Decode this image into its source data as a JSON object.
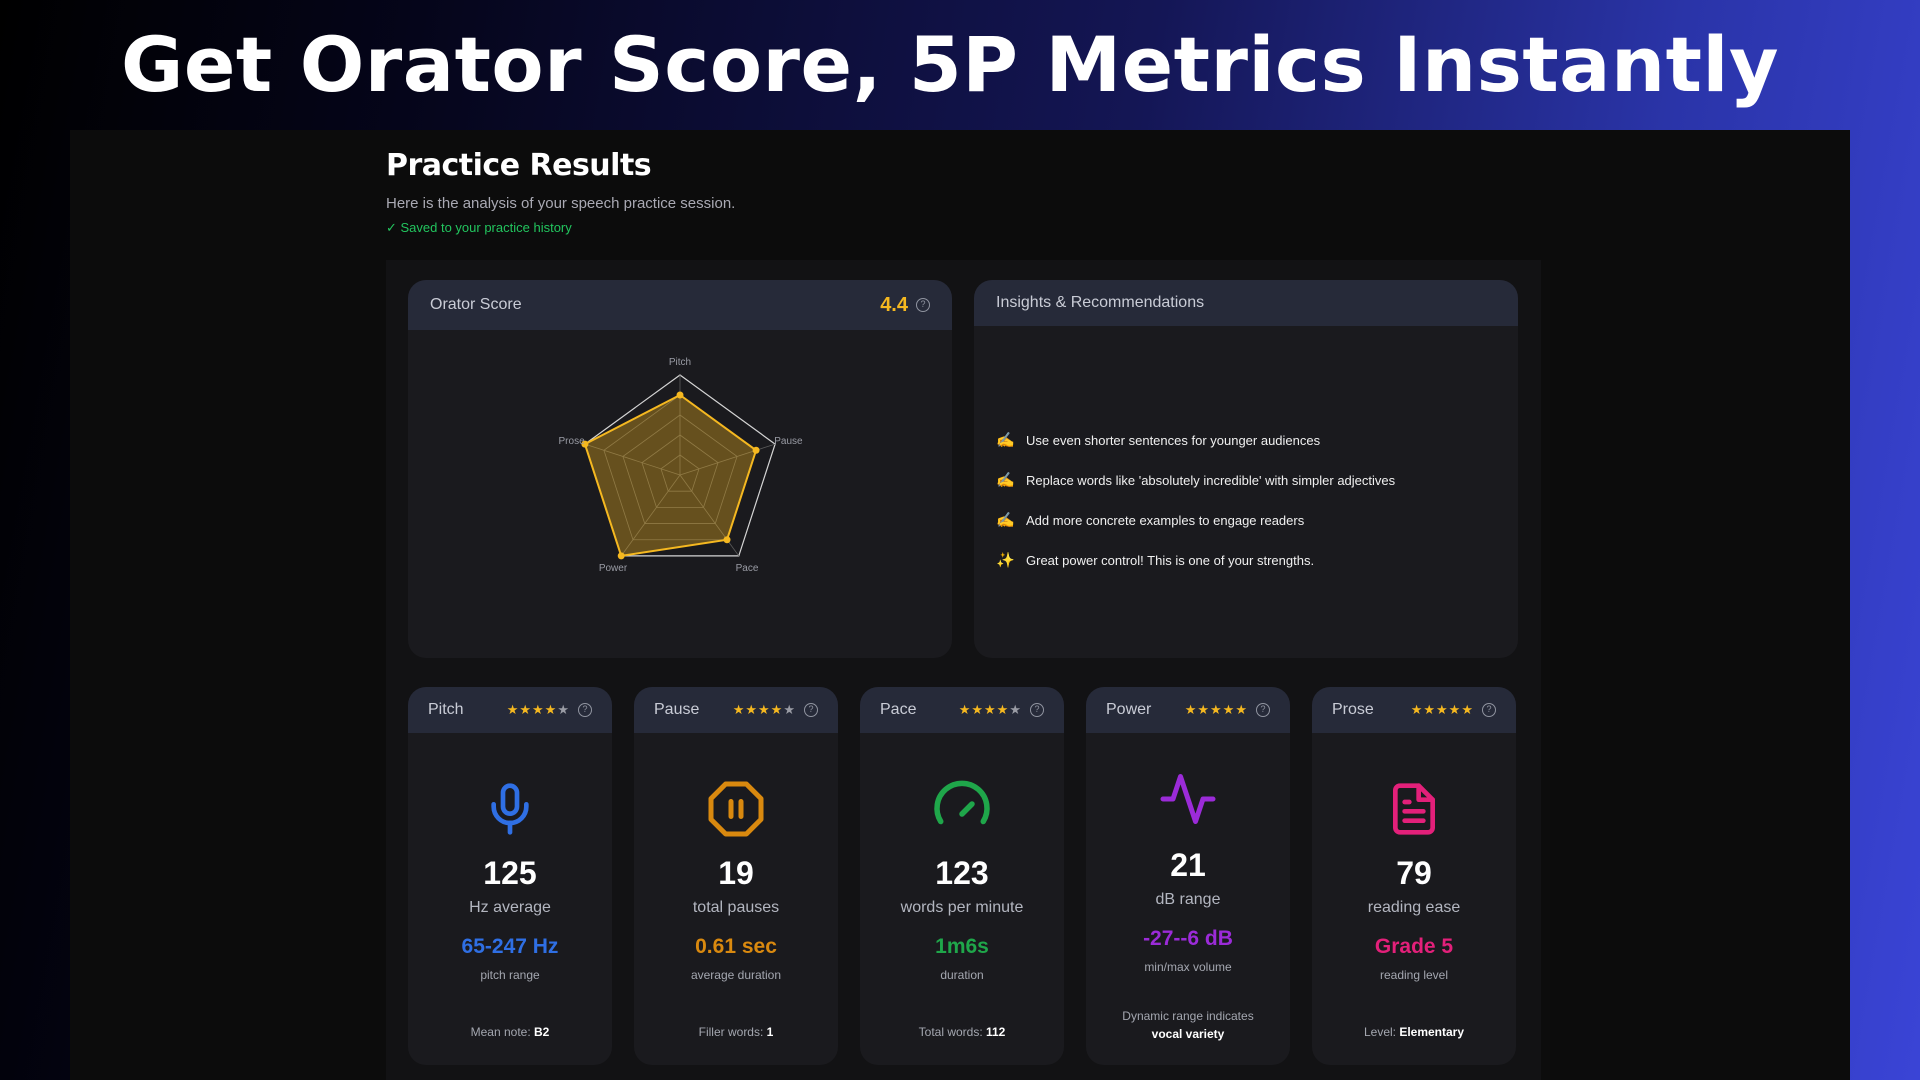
{
  "headline": "Get Orator Score, 5P Metrics Instantly",
  "page": {
    "title": "Practice Results",
    "subtitle": "Here is the analysis of your speech practice session.",
    "saved": "✓ Saved to your practice history"
  },
  "orator": {
    "title": "Orator Score",
    "score": "4.4",
    "help_icon": "?",
    "axes": [
      "Pitch",
      "Pause",
      "Pace",
      "Power",
      "Prose"
    ],
    "values": [
      4,
      4,
      4,
      5,
      5
    ],
    "max": 5,
    "color": "#f5b820"
  },
  "insights": {
    "title": "Insights & Recommendations",
    "items": [
      {
        "emoji": "✍️",
        "text": "Use even shorter sentences for younger audiences"
      },
      {
        "emoji": "✍️",
        "text": "Replace words like 'absolutely incredible' with simpler adjectives"
      },
      {
        "emoji": "✍️",
        "text": "Add more concrete examples to engage readers"
      },
      {
        "emoji": "✨",
        "text": "Great power control! This is one of your strengths."
      }
    ]
  },
  "metrics": {
    "pitch": {
      "name": "Pitch",
      "stars": "★★★★",
      "stars_off": "★",
      "rating": 4,
      "icon": "microphone-icon",
      "value": "125",
      "unit": "Hz average",
      "secondary": "65-247 Hz",
      "secondary_label": "pitch range",
      "footer_label": "Mean note: ",
      "footer_value": "B2",
      "color": "#2f6fe4"
    },
    "pause": {
      "name": "Pause",
      "stars": "★★★★",
      "stars_off": "★",
      "rating": 4,
      "icon": "pause-octagon-icon",
      "value": "19",
      "unit": "total pauses",
      "secondary": "0.61 sec",
      "secondary_label": "average duration",
      "footer_label": "Filler words: ",
      "footer_value": "1",
      "color": "#d9890f"
    },
    "pace": {
      "name": "Pace",
      "stars": "★★★★",
      "stars_off": "★",
      "rating": 4,
      "icon": "gauge-icon",
      "value": "123",
      "unit": "words per minute",
      "secondary": "1m6s",
      "secondary_label": "duration",
      "footer_label": "Total words: ",
      "footer_value": "112",
      "color": "#1fa64a"
    },
    "power": {
      "name": "Power",
      "stars": "★★★★★",
      "stars_off": "",
      "rating": 5,
      "icon": "activity-icon",
      "value": "21",
      "unit": "dB range",
      "secondary": "-27--6 dB",
      "secondary_label": "min/max volume",
      "footer_label": "Dynamic range indicates",
      "footer_value": "vocal variety",
      "color": "#9b2bd8"
    },
    "prose": {
      "name": "Prose",
      "stars": "★★★★★",
      "stars_off": "",
      "rating": 5,
      "icon": "document-icon",
      "value": "79",
      "unit": "reading ease",
      "secondary": "Grade 5",
      "secondary_label": "reading level",
      "footer_label": "Level: ",
      "footer_value": "Elementary",
      "color": "#e3207a"
    }
  }
}
